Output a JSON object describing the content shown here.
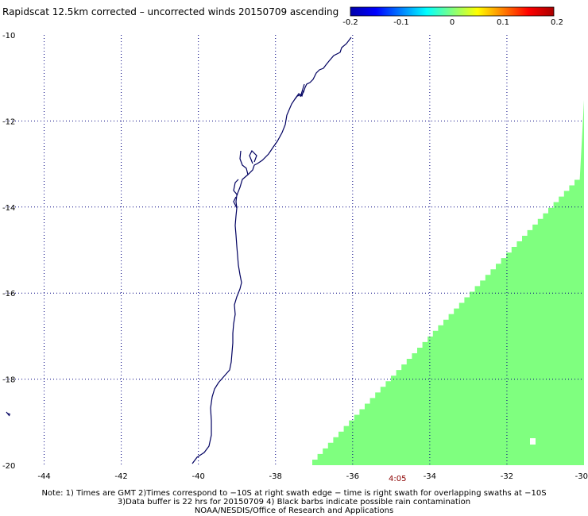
{
  "title": "Rapidscat 12.5km corrected – uncorrected winds 20150709 ascending",
  "colorbar": {
    "ticks": [
      "-0.2",
      "-0.1",
      "0",
      "0.1",
      "0.2"
    ],
    "colors": [
      "#0000aa",
      "#0000ff",
      "#0080ff",
      "#00ffff",
      "#80ff80",
      "#ffff00",
      "#ff8000",
      "#ff0000",
      "#aa0000"
    ]
  },
  "axes": {
    "lon_ticks": [
      "-44",
      "-42",
      "-40",
      "-38",
      "-36",
      "-34",
      "-32",
      "-30"
    ],
    "lat_ticks": [
      "-10",
      "-12",
      "-14",
      "-16",
      "-18",
      "-20"
    ],
    "lon_range": [
      -45,
      -30
    ],
    "lat_range": [
      -20,
      -10
    ],
    "grid": "dotted"
  },
  "swath": {
    "fill_color": "#7fff7f",
    "value_level": "0"
  },
  "time_label": "4:05",
  "notes": {
    "line1": "Note: 1) Times are GMT 2)Times correspond to −10S at right swath edge − time is right swath for overlapping swaths at −10S",
    "line2": "3)Data buffer is 22 hrs for 20150709 4) Black barbs indicate possible rain contamination",
    "line3": "NOAA/NESDIS/Office of Research and Applications"
  },
  "colors": {
    "coastline": "#000060",
    "grid": "#000080",
    "time_label": "#8b0000"
  }
}
